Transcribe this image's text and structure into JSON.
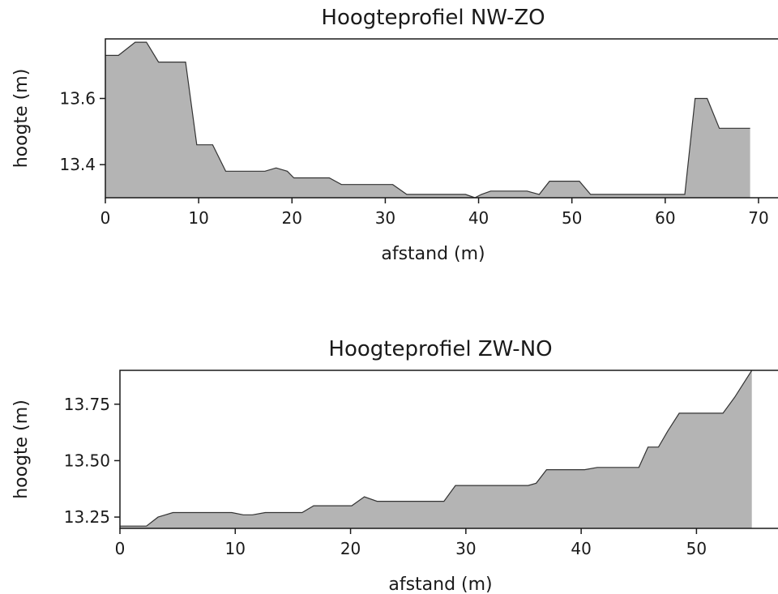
{
  "chart_data": [
    {
      "type": "area",
      "title": "Hoogteprofiel NW-ZO",
      "xlabel": "afstand (m)",
      "ylabel": "hoogte (m)",
      "xlim": [
        0,
        72
      ],
      "ylim": [
        13.3,
        13.78
      ],
      "xticks": [
        0,
        10,
        20,
        30,
        40,
        50,
        60,
        70
      ],
      "yticks": [
        13.4,
        13.6
      ],
      "ytick_labels": [
        "13.4",
        "13.6"
      ],
      "fill_color": "#b4b4b4",
      "line_color": "#333333",
      "x": [
        0,
        1.4,
        3.2,
        4.4,
        5.7,
        8.6,
        9.8,
        11.5,
        12.9,
        17.1,
        18.3,
        19.5,
        20.2,
        24,
        25.3,
        30.8,
        32.3,
        38.6,
        39.6,
        40.3,
        41.3,
        45.2,
        46.5,
        47.6,
        50.8,
        52.0,
        62.1,
        63.2,
        64.5,
        65.8,
        69.1
      ],
      "y": [
        13.73,
        13.73,
        13.77,
        13.77,
        13.71,
        13.71,
        13.46,
        13.46,
        13.38,
        13.38,
        13.39,
        13.38,
        13.36,
        13.36,
        13.34,
        13.34,
        13.31,
        13.31,
        13.3,
        13.31,
        13.32,
        13.32,
        13.31,
        13.35,
        13.35,
        13.31,
        13.31,
        13.6,
        13.6,
        13.51,
        13.51
      ]
    },
    {
      "type": "area",
      "title": "Hoogteprofiel ZW-NO",
      "xlabel": "afstand (m)",
      "ylabel": "hoogte (m)",
      "xlim": [
        0,
        57
      ],
      "ylim": [
        13.2,
        13.9
      ],
      "xticks": [
        0,
        10,
        20,
        30,
        40,
        50
      ],
      "yticks": [
        13.25,
        13.5,
        13.75
      ],
      "ytick_labels": [
        "13.25",
        "13.50",
        "13.75"
      ],
      "fill_color": "#b4b4b4",
      "line_color": "#333333",
      "x": [
        0,
        2.3,
        3.3,
        4.6,
        9.7,
        10.7,
        11.5,
        12.6,
        15.8,
        16.8,
        20.1,
        21.2,
        22.3,
        28.1,
        29.1,
        35.4,
        36.1,
        37.0,
        40.3,
        41.4,
        45.0,
        45.8,
        46.7,
        47.5,
        48.5,
        52.3,
        53.3,
        54.8
      ],
      "y": [
        13.21,
        13.21,
        13.25,
        13.27,
        13.27,
        13.26,
        13.26,
        13.27,
        13.27,
        13.3,
        13.3,
        13.34,
        13.32,
        13.32,
        13.39,
        13.39,
        13.4,
        13.46,
        13.46,
        13.47,
        13.47,
        13.56,
        13.56,
        13.63,
        13.71,
        13.71,
        13.78,
        13.9
      ]
    }
  ]
}
